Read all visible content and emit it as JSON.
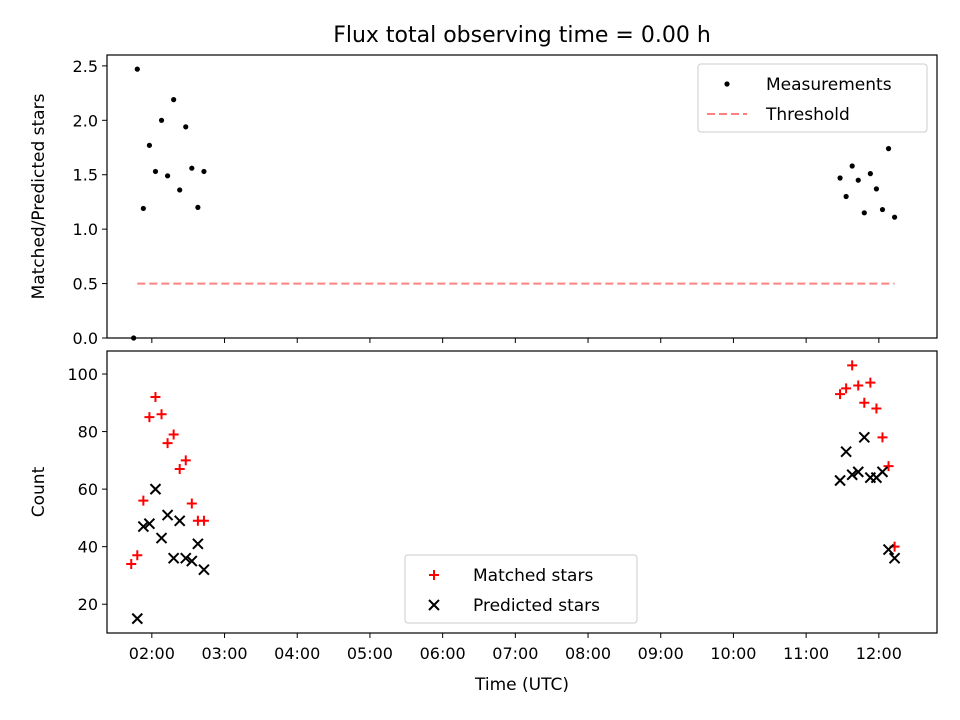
{
  "chart_data": [
    {
      "type": "scatter",
      "title": "Flux total observing time = 0.00 h",
      "ylabel": "Matched/Predicted stars",
      "xlabel": "",
      "xlim": [
        "01:23",
        "12:48"
      ],
      "ylim": [
        0,
        2.6
      ],
      "yticks": [
        0.0,
        0.5,
        1.0,
        1.5,
        2.0,
        2.5
      ],
      "ytick_labels": [
        "0.0",
        "0.5",
        "1.0",
        "1.5",
        "2.0",
        "2.5"
      ],
      "xticks": [
        "02:00",
        "03:00",
        "04:00",
        "05:00",
        "06:00",
        "07:00",
        "08:00",
        "09:00",
        "10:00",
        "11:00",
        "12:00"
      ],
      "xtick_labels_shown": false,
      "legend_position": "top-right",
      "series": [
        {
          "name": "Measurements",
          "kind": "scatter",
          "marker": "dot",
          "color": "#000000",
          "x": [
            "01:45",
            "01:48",
            "01:53",
            "01:58",
            "02:03",
            "02:08",
            "02:13",
            "02:18",
            "02:23",
            "02:28",
            "02:33",
            "02:38",
            "02:43",
            "11:28",
            "11:33",
            "11:38",
            "11:43",
            "11:48",
            "11:53",
            "11:58",
            "12:03",
            "12:08",
            "12:13"
          ],
          "y": [
            0.0,
            2.47,
            1.19,
            1.77,
            1.53,
            2.0,
            1.49,
            2.19,
            1.36,
            1.94,
            1.56,
            1.2,
            1.53,
            1.47,
            1.3,
            1.58,
            1.45,
            1.15,
            1.51,
            1.37,
            1.18,
            1.74,
            1.11
          ]
        },
        {
          "name": "Threshold",
          "kind": "line",
          "style": "dashed",
          "color": "#ff8080",
          "x": [
            "01:48",
            "12:13"
          ],
          "y": [
            0.5,
            0.5
          ]
        }
      ]
    },
    {
      "type": "scatter",
      "title": "",
      "ylabel": "Count",
      "xlabel": "Time (UTC)",
      "xlim": [
        "01:23",
        "12:48"
      ],
      "ylim": [
        10,
        108
      ],
      "yticks": [
        20,
        40,
        60,
        80,
        100
      ],
      "ytick_labels": [
        "20",
        "40",
        "60",
        "80",
        "100"
      ],
      "xticks": [
        "02:00",
        "03:00",
        "04:00",
        "05:00",
        "06:00",
        "07:00",
        "08:00",
        "09:00",
        "10:00",
        "11:00",
        "12:00"
      ],
      "xtick_labels": [
        "02:00",
        "03:00",
        "04:00",
        "05:00",
        "06:00",
        "07:00",
        "08:00",
        "09:00",
        "10:00",
        "11:00",
        "12:00"
      ],
      "legend_position": "bottom-center",
      "series": [
        {
          "name": "Matched stars",
          "kind": "scatter",
          "marker": "plus",
          "color": "#ff0000",
          "x": [
            "01:43",
            "01:48",
            "01:53",
            "01:58",
            "02:03",
            "02:08",
            "02:13",
            "02:18",
            "02:23",
            "02:28",
            "02:33",
            "02:38",
            "02:43",
            "11:28",
            "11:33",
            "11:38",
            "11:43",
            "11:48",
            "11:53",
            "11:58",
            "12:03",
            "12:08",
            "12:13"
          ],
          "y": [
            34,
            37,
            56,
            85,
            92,
            86,
            76,
            79,
            67,
            70,
            55,
            49,
            49,
            93,
            95,
            103,
            96,
            90,
            97,
            88,
            78,
            68,
            40
          ]
        },
        {
          "name": "Predicted stars",
          "kind": "scatter",
          "marker": "x",
          "color": "#000000",
          "x": [
            "01:48",
            "01:53",
            "01:58",
            "02:03",
            "02:08",
            "02:13",
            "02:18",
            "02:23",
            "02:28",
            "02:33",
            "02:38",
            "02:43",
            "11:28",
            "11:33",
            "11:38",
            "11:43",
            "11:48",
            "11:53",
            "11:58",
            "12:03",
            "12:08",
            "12:13"
          ],
          "y": [
            15,
            47,
            48,
            60,
            43,
            51,
            36,
            49,
            36,
            35,
            41,
            32,
            63,
            73,
            65,
            66,
            78,
            64,
            64,
            66,
            39,
            36
          ]
        }
      ]
    }
  ]
}
